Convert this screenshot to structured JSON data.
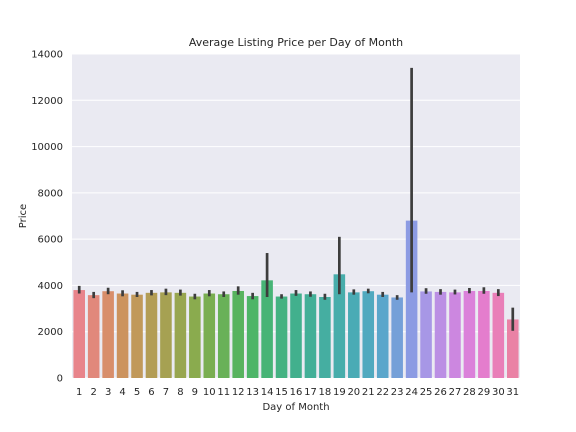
{
  "chart_data": {
    "type": "bar",
    "title": "Average Listing Price per Day of Month",
    "xlabel": "Day of Month",
    "ylabel": "Price",
    "ylim": [
      0,
      14000
    ],
    "yticks": [
      0,
      2000,
      4000,
      6000,
      8000,
      10000,
      12000,
      14000
    ],
    "grid": true,
    "categories": [
      "1",
      "2",
      "3",
      "4",
      "5",
      "6",
      "7",
      "8",
      "9",
      "10",
      "11",
      "12",
      "13",
      "14",
      "15",
      "16",
      "17",
      "18",
      "19",
      "20",
      "21",
      "22",
      "23",
      "24",
      "25",
      "26",
      "27",
      "28",
      "29",
      "30",
      "31"
    ],
    "values": [
      3800,
      3580,
      3750,
      3650,
      3600,
      3680,
      3700,
      3680,
      3520,
      3650,
      3620,
      3760,
      3540,
      4220,
      3520,
      3650,
      3620,
      3500,
      4480,
      3700,
      3750,
      3600,
      3480,
      6800,
      3740,
      3720,
      3700,
      3760,
      3760,
      3680,
      2530
    ],
    "error_low": [
      3650,
      3450,
      3620,
      3530,
      3500,
      3570,
      3580,
      3560,
      3400,
      3530,
      3500,
      3600,
      3400,
      3500,
      3430,
      3550,
      3510,
      3380,
      3620,
      3600,
      3660,
      3500,
      3380,
      3700,
      3640,
      3600,
      3610,
      3660,
      3640,
      3540,
      2040
    ],
    "error_high": [
      3980,
      3720,
      3900,
      3790,
      3720,
      3800,
      3860,
      3820,
      3640,
      3800,
      3740,
      3960,
      3680,
      5400,
      3620,
      3800,
      3740,
      3640,
      6100,
      3830,
      3860,
      3720,
      3580,
      13400,
      3880,
      3840,
      3820,
      3890,
      3920,
      3840,
      3040
    ],
    "colors": [
      "#e8848b",
      "#e1887b",
      "#d88e6b",
      "#cc935e",
      "#c1995a",
      "#b39d55",
      "#a6a152",
      "#98a650",
      "#8aab4e",
      "#7aae52",
      "#69b158",
      "#58b35f",
      "#4db568",
      "#47b476",
      "#44b282",
      "#42b08d",
      "#43af97",
      "#45aea1",
      "#47adab",
      "#4aabb5",
      "#50a9bf",
      "#5aa6cb",
      "#75a0d8",
      "#8c9be3",
      "#a797e6",
      "#bb8fe4",
      "#cc87e0",
      "#db81da",
      "#e47dcd",
      "#e97fb8",
      "#ea82a5"
    ]
  }
}
